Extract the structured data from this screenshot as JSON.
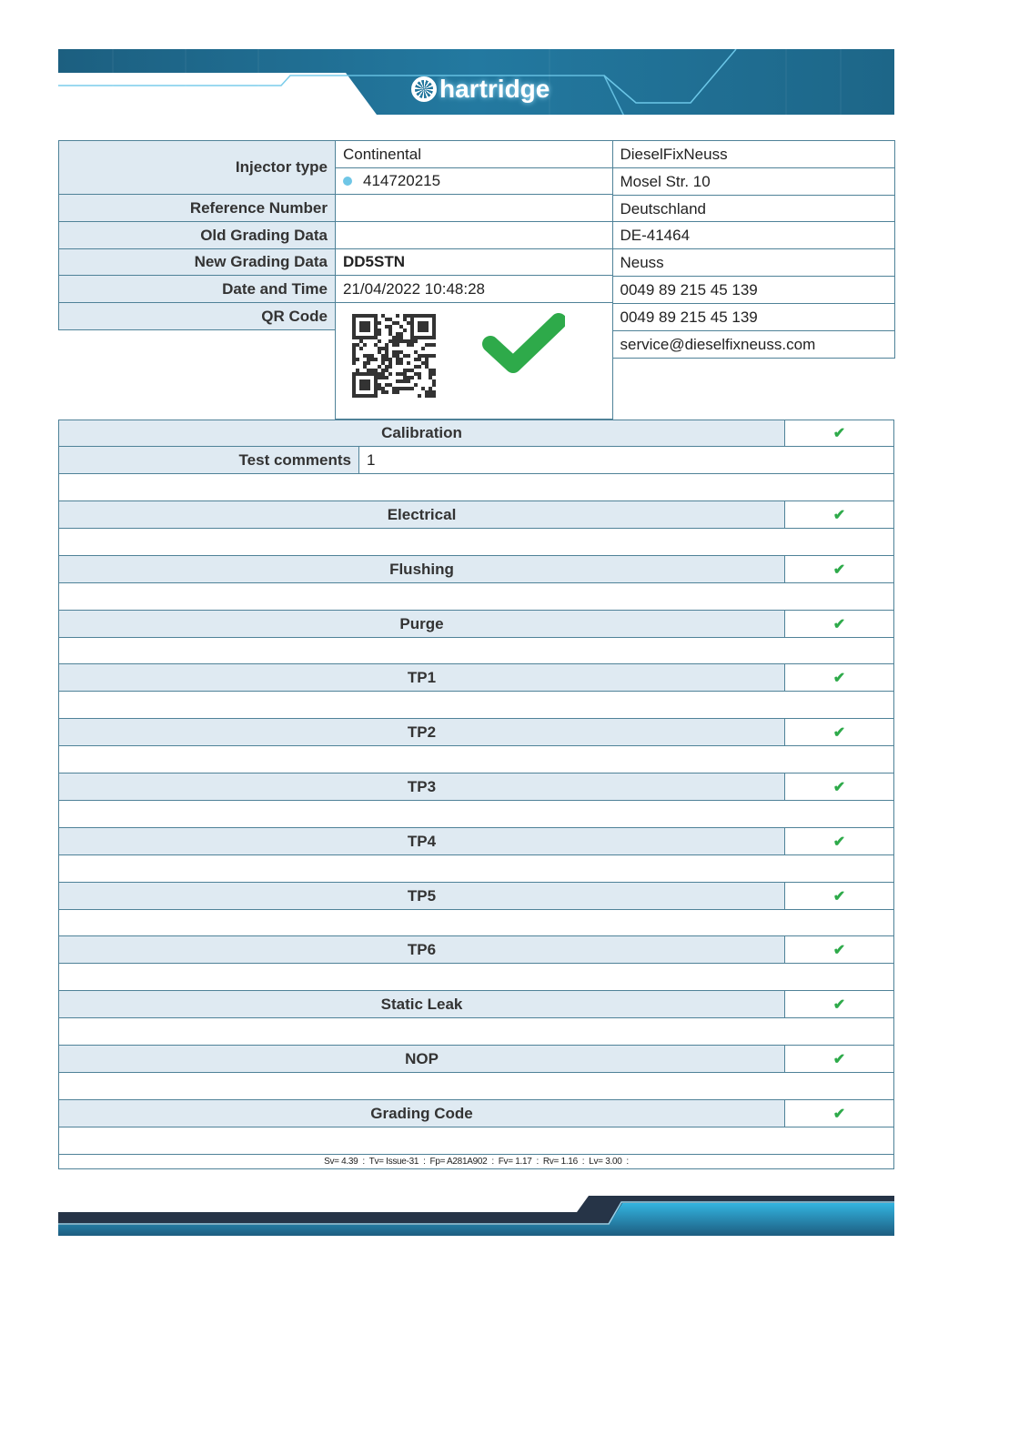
{
  "brand": {
    "logo_text": "hartridge",
    "colors": {
      "header": "#1f6f91",
      "border": "#4f8298",
      "label_bg": "#dfeaf2",
      "check": "#2eaa4a"
    }
  },
  "info": {
    "labels": {
      "injector_type": "Injector type",
      "reference_number": "Reference Number",
      "old_grading": "Old Grading Data",
      "new_grading": "New Grading Data",
      "date_time": "Date and Time",
      "qr_code": "QR Code"
    },
    "values": {
      "manufacturer": "Continental",
      "part_number": "414720215",
      "reference_number": "",
      "old_grading": "",
      "new_grading": "DD5STN",
      "date_time": "21/04/2022 10:48:28"
    },
    "overall_result": "pass"
  },
  "company": [
    "DieselFixNeuss",
    "Mosel Str. 10",
    "Deutschland",
    "DE-41464",
    "Neuss",
    "0049 89 215 45 139",
    "0049 89 215 45 139",
    "service@dieselfixneuss.com"
  ],
  "calibration": {
    "title": "Calibration",
    "status": "pass",
    "comments_label": "Test comments",
    "comments_value": "1"
  },
  "sections": [
    {
      "title": "Electrical",
      "status": "pass"
    },
    {
      "title": "Flushing",
      "status": "pass"
    },
    {
      "title": "Purge",
      "status": "pass"
    },
    {
      "title": "TP1",
      "status": "pass"
    },
    {
      "title": "TP2",
      "status": "pass"
    },
    {
      "title": "TP3",
      "status": "pass"
    },
    {
      "title": "TP4",
      "status": "pass"
    },
    {
      "title": "TP5",
      "status": "pass"
    },
    {
      "title": "TP6",
      "status": "pass"
    },
    {
      "title": "Static Leak",
      "status": "pass"
    },
    {
      "title": "NOP",
      "status": "pass"
    },
    {
      "title": "Grading Code",
      "status": "pass"
    }
  ],
  "footer_line": "Sv= 4.39  :  Tv= Issue-31  :  Fp= A281A902  :  Fv= 1.17  :  Rv= 1.16  :  Lv= 3.00  :"
}
